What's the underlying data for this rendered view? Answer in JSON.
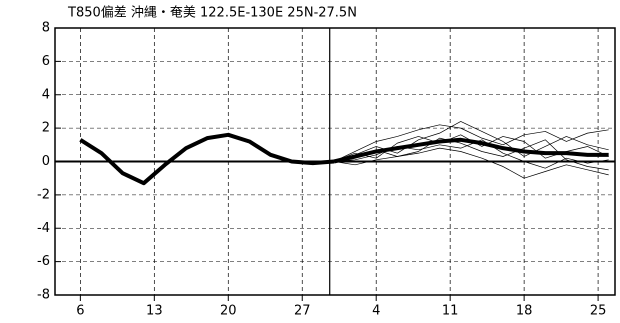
{
  "chart_data": {
    "type": "line",
    "title": "T850偏差 沖縄・奄美 122.5E-130E 25N-27.5N",
    "xlim": [
      -2.4,
      50.6
    ],
    "ylim": [
      -8,
      8
    ],
    "xticks": [
      {
        "value": 0,
        "label": "6"
      },
      {
        "value": 7,
        "label": "13"
      },
      {
        "value": 14,
        "label": "20"
      },
      {
        "value": 21,
        "label": "27"
      },
      {
        "value": 28,
        "label": "4"
      },
      {
        "value": 35,
        "label": "11"
      },
      {
        "value": 42,
        "label": "18"
      },
      {
        "value": 49,
        "label": "25"
      }
    ],
    "yticks": [
      8,
      6,
      4,
      2,
      0,
      -2,
      -4,
      -6,
      -8
    ],
    "grid": true,
    "vline_x": 23.6,
    "series": [
      {
        "color": "#000000",
        "width": 4,
        "x": [
          0,
          2,
          4,
          6,
          8,
          10,
          12,
          14,
          16,
          18,
          20,
          22,
          24
        ],
        "values": [
          1.3,
          0.5,
          -0.7,
          -1.3,
          -0.2,
          0.8,
          1.4,
          1.6,
          1.2,
          0.4,
          0.0,
          -0.1,
          0.0
        ]
      },
      {
        "color": "#000000",
        "width": 4,
        "x": [
          24,
          26,
          28,
          30,
          32,
          34,
          36,
          38,
          40,
          42,
          44,
          46,
          48,
          50
        ],
        "values": [
          0.0,
          0.3,
          0.6,
          0.8,
          1.0,
          1.2,
          1.3,
          1.1,
          0.8,
          0.6,
          0.5,
          0.5,
          0.4,
          0.4
        ]
      },
      {
        "color": "#000000",
        "width": 0.7,
        "x": [
          24,
          26,
          28,
          30,
          32,
          34,
          36,
          38,
          40,
          42,
          44,
          46,
          48,
          50
        ],
        "values": [
          0.0,
          0.6,
          1.2,
          1.5,
          1.9,
          2.2,
          2.0,
          1.4,
          1.0,
          1.6,
          1.8,
          1.2,
          1.7,
          1.9
        ]
      },
      {
        "color": "#000000",
        "width": 0.7,
        "x": [
          24,
          26,
          28,
          30,
          32,
          34,
          36,
          38,
          40,
          42,
          44,
          46,
          48,
          50
        ],
        "values": [
          0.0,
          -0.2,
          0.1,
          0.3,
          0.5,
          0.8,
          0.6,
          0.2,
          -0.3,
          -1.0,
          -0.6,
          -0.2,
          -0.5,
          -0.8
        ]
      },
      {
        "color": "#000000",
        "width": 0.7,
        "x": [
          24,
          26,
          28,
          30,
          32,
          34,
          36,
          38,
          40,
          42,
          44,
          46,
          48,
          50
        ],
        "values": [
          0.0,
          0.4,
          0.9,
          0.5,
          1.3,
          1.7,
          2.4,
          1.8,
          1.2,
          0.3,
          0.9,
          1.5,
          1.0,
          0.7
        ]
      },
      {
        "color": "#000000",
        "width": 0.7,
        "x": [
          24,
          26,
          28,
          30,
          32,
          34,
          36,
          38,
          40,
          42,
          44,
          46,
          48,
          50
        ],
        "values": [
          0.0,
          0.1,
          0.4,
          0.9,
          0.7,
          1.0,
          0.8,
          1.3,
          0.5,
          0.0,
          -0.4,
          0.2,
          -0.1,
          0.1
        ]
      },
      {
        "color": "#000000",
        "width": 0.7,
        "x": [
          24,
          26,
          28,
          30,
          32,
          34,
          36,
          38,
          40,
          42,
          44,
          46,
          48,
          50
        ],
        "values": [
          0.0,
          0.5,
          0.2,
          1.1,
          1.5,
          1.1,
          1.6,
          0.9,
          1.5,
          1.2,
          0.2,
          0.6,
          0.9,
          0.3
        ]
      },
      {
        "color": "#000000",
        "width": 0.7,
        "x": [
          24,
          26,
          28,
          30,
          32,
          34,
          36,
          38,
          40,
          42,
          44,
          46,
          48,
          50
        ],
        "values": [
          0.0,
          0.2,
          0.7,
          0.3,
          0.6,
          1.4,
          1.1,
          0.6,
          0.3,
          0.8,
          1.3,
          0.1,
          -0.3,
          -0.5
        ]
      }
    ]
  }
}
